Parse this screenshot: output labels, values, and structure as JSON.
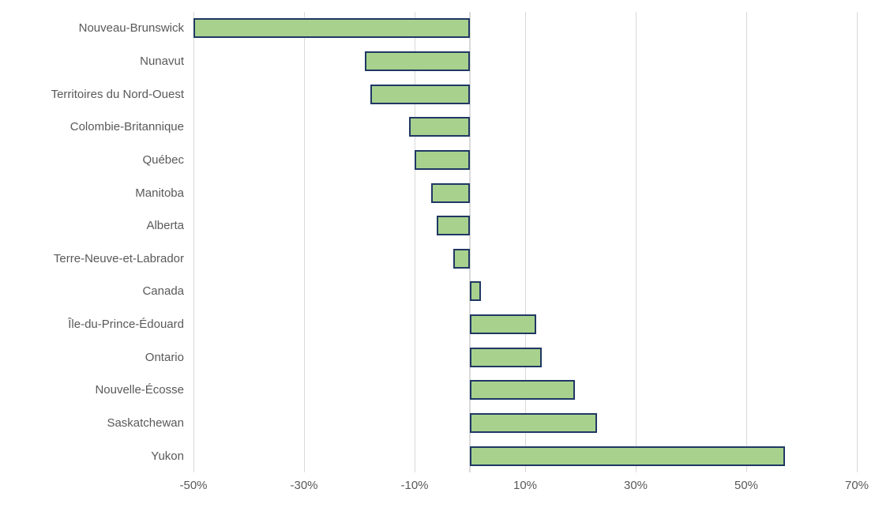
{
  "chart_data": {
    "type": "bar",
    "orientation": "horizontal",
    "title": "",
    "xlabel": "",
    "ylabel": "",
    "value_unit": "%",
    "categories": [
      "Nouveau-Brunswick",
      "Nunavut",
      "Territoires du Nord-Ouest",
      "Colombie-Britannique",
      "Québec",
      "Manitoba",
      "Alberta",
      "Terre-Neuve-et-Labrador",
      "Canada",
      "Île-du-Prince-Édouard",
      "Ontario",
      "Nouvelle-Écosse",
      "Saskatchewan",
      "Yukon"
    ],
    "values": [
      -50,
      -19,
      -18,
      -11,
      -10,
      -7,
      -6,
      -3,
      2,
      12,
      13,
      19,
      23,
      57
    ],
    "xlim": [
      -50,
      70
    ],
    "x_tick_values": [
      -50,
      -30,
      -10,
      10,
      30,
      50,
      70
    ],
    "x_tick_labels": [
      "-50%",
      "-30%",
      "-10%",
      "10%",
      "30%",
      "50%",
      "70%"
    ],
    "grid": "vertical-only",
    "legend": "none",
    "colors": {
      "bar_fill": "#a9d18e",
      "bar_border": "#1f3864",
      "gridline": "#d9d9d9",
      "axis_line": "#d9d9d9",
      "text": "#595959",
      "background": "#ffffff"
    }
  }
}
